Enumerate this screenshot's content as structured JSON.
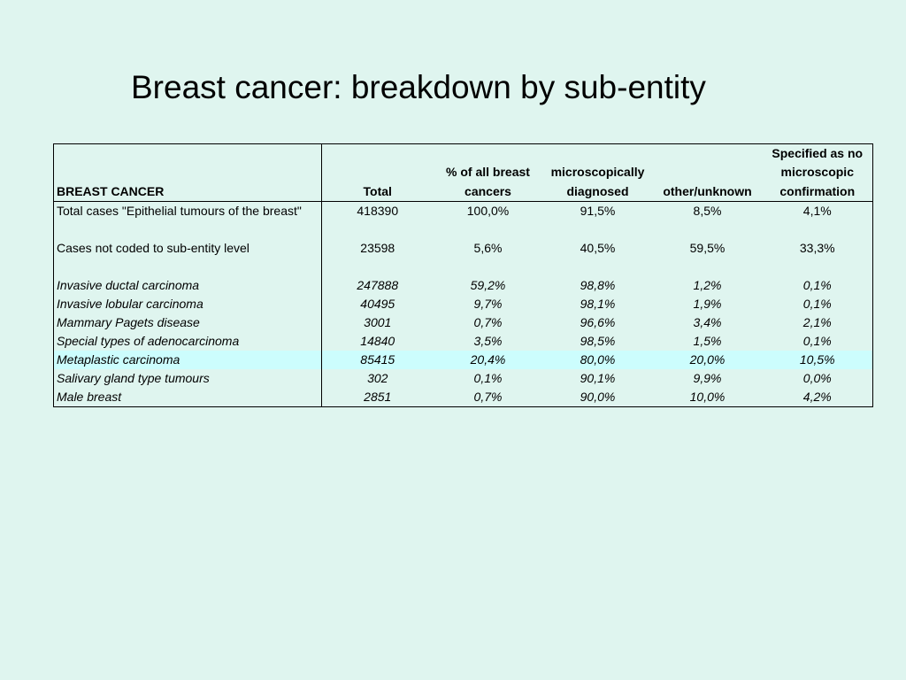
{
  "title": "Breast cancer: breakdown by sub-entity",
  "table": {
    "headers": [
      [
        "BREAST CANCER"
      ],
      [
        "Total"
      ],
      [
        "% of all breast",
        "cancers"
      ],
      [
        "microscopically",
        "diagnosed"
      ],
      [
        "other/unknown"
      ],
      [
        "Specified as no",
        "microscopic",
        "confirmation"
      ]
    ],
    "rows": [
      {
        "label": "Total cases \"Epithelial tumours of the breast\"",
        "values": [
          "418390",
          "100,0%",
          "91,5%",
          "8,5%",
          "4,1%"
        ],
        "italic": false,
        "highlight": false,
        "spacer_after": true
      },
      {
        "label": "Cases not coded to sub-entity level",
        "values": [
          "23598",
          "5,6%",
          "40,5%",
          "59,5%",
          "33,3%"
        ],
        "italic": false,
        "highlight": false,
        "spacer_after": true
      },
      {
        "label": "Invasive ductal carcinoma",
        "values": [
          "247888",
          "59,2%",
          "98,8%",
          "1,2%",
          "0,1%"
        ],
        "italic": true,
        "highlight": false,
        "spacer_after": false
      },
      {
        "label": "Invasive lobular carcinoma",
        "values": [
          "40495",
          "9,7%",
          "98,1%",
          "1,9%",
          "0,1%"
        ],
        "italic": true,
        "highlight": false,
        "spacer_after": false
      },
      {
        "label": "Mammary Pagets disease",
        "values": [
          "3001",
          "0,7%",
          "96,6%",
          "3,4%",
          "2,1%"
        ],
        "italic": true,
        "highlight": false,
        "spacer_after": false
      },
      {
        "label": "Special types of adenocarcinoma",
        "values": [
          "14840",
          "3,5%",
          "98,5%",
          "1,5%",
          "0,1%"
        ],
        "italic": true,
        "highlight": false,
        "spacer_after": false
      },
      {
        "label": "Metaplastic carcinoma",
        "values": [
          "85415",
          "20,4%",
          "80,0%",
          "20,0%",
          "10,5%"
        ],
        "italic": true,
        "highlight": true,
        "spacer_after": false
      },
      {
        "label": "Salivary gland type tumours",
        "values": [
          "302",
          "0,1%",
          "90,1%",
          "9,9%",
          "0,0%"
        ],
        "italic": true,
        "highlight": false,
        "spacer_after": false
      },
      {
        "label": "Male breast",
        "values": [
          "2851",
          "0,7%",
          "90,0%",
          "10,0%",
          "4,2%"
        ],
        "italic": true,
        "highlight": false,
        "spacer_after": false
      }
    ]
  },
  "colors": {
    "background": "#dff5ef",
    "highlight_row": "#ccfdfd"
  }
}
